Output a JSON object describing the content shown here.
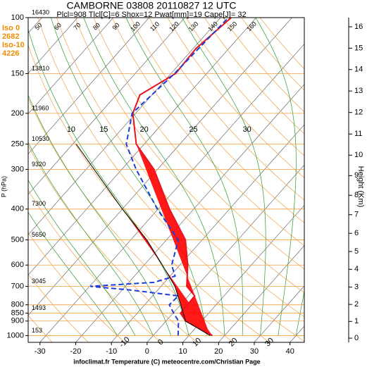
{
  "chart_data": {
    "type": "skewt",
    "title": "CAMBORNE 03808 20110827 12 UTC",
    "subtitle": "Plcl=908 Tlcl[C]=6 Shox=12 Pwat[mm]=19 Cape[J]= 32",
    "ylabel": "P (hPa)",
    "y2label": "Height (Km)",
    "footer": "infoclimat.fr Temperature (C) meteocentre.com/Christian Page",
    "iso_labels": [
      "Iso 0",
      "2682",
      "Iso-10",
      "4226"
    ],
    "log_y": true,
    "xlim": [
      -33.3,
      44
    ],
    "ylim": [
      1050,
      100
    ],
    "xticks": [
      -30,
      -20,
      -10,
      0,
      10,
      20,
      30,
      40
    ],
    "yticks": [
      100,
      150,
      200,
      250,
      300,
      400,
      500,
      600,
      700,
      800,
      850,
      900,
      1000
    ],
    "heights": [
      {
        "p": 100,
        "label": "16430"
      },
      {
        "p": 150,
        "label": "13810"
      },
      {
        "p": 200,
        "label": "11960"
      },
      {
        "p": 250,
        "label": "10530"
      },
      {
        "p": 300,
        "label": "9320"
      },
      {
        "p": 400,
        "label": "7300"
      },
      {
        "p": 500,
        "label": "5650"
      },
      {
        "p": 700,
        "label": "3045"
      },
      {
        "p": 850,
        "label": "1493"
      },
      {
        "p": 1000,
        "label": "153"
      }
    ],
    "y2ticks": [
      0,
      1,
      2,
      3,
      4,
      5,
      6,
      7,
      8,
      9,
      10,
      11,
      12,
      13,
      14,
      15,
      16
    ],
    "dry_adiabat_labels": [
      -10,
      0,
      10,
      20,
      30
    ],
    "moist_adiabat_labels": [
      10,
      15,
      20,
      25,
      30
    ],
    "top_labels": [
      50,
      60,
      70,
      80,
      90,
      100,
      110,
      120,
      130,
      140,
      150,
      160
    ],
    "series": [
      {
        "name": "Temperature",
        "color": "#e8141e",
        "p": [
          1000,
          900,
          850,
          750,
          700,
          600,
          500,
          400,
          300,
          250,
          200,
          175,
          150,
          125,
          100
        ],
        "values": [
          16.6,
          5.5,
          2.1,
          1.8,
          -2.8,
          -7.8,
          -14.7,
          -26.8,
          -41,
          -52.2,
          -60.8,
          -63.4,
          -58.7,
          -59.2,
          -57
        ]
      },
      {
        "name": "Dewpoint",
        "color": "#1e3cdc",
        "dash": true,
        "p": [
          1000,
          900,
          850,
          800,
          750,
          720,
          700,
          680,
          650,
          600,
          500,
          400,
          300,
          250,
          200,
          150,
          100
        ],
        "values": [
          7,
          3.5,
          0.2,
          -3.1,
          -2.8,
          -17,
          -29.8,
          -13,
          -8.6,
          -12.3,
          -16.7,
          -30.2,
          -46,
          -55,
          -61,
          -59,
          -57.8
        ]
      },
      {
        "name": "Parcel",
        "color": "#000000",
        "p": [
          1000,
          900,
          800,
          700,
          600,
          500,
          400,
          250
        ],
        "values": [
          16,
          5.5,
          0.1,
          -6.1,
          -14.9,
          -25.5,
          -40,
          -69
        ]
      }
    ]
  }
}
